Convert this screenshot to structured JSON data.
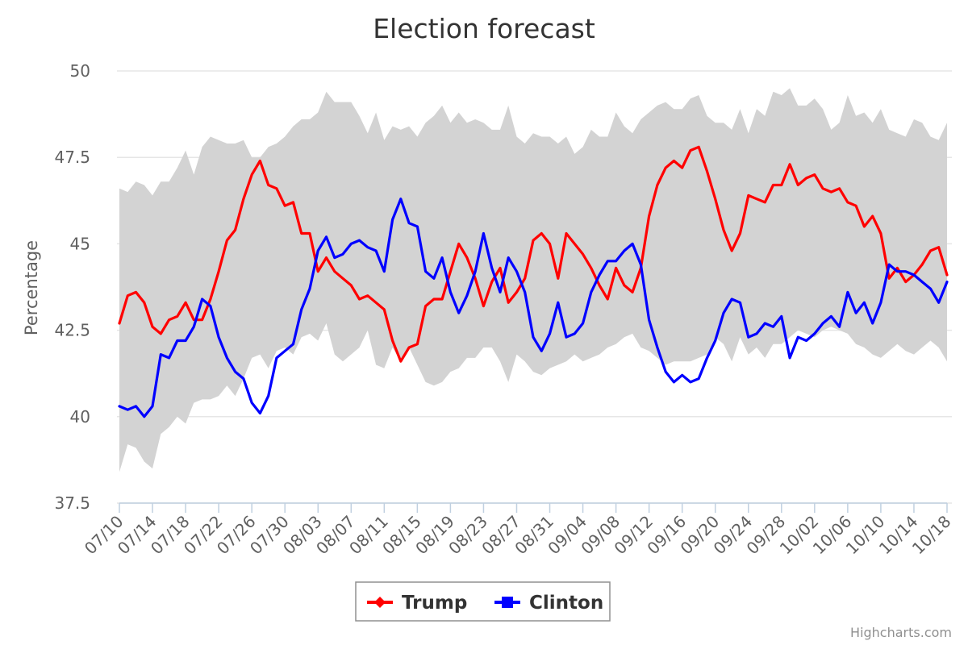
{
  "chart_data": {
    "type": "line",
    "title": "Election forecast",
    "xlabel": "",
    "ylabel": "Percentage",
    "ylim": [
      37.5,
      50
    ],
    "yticks": [
      "37.5",
      "40",
      "42.5",
      "45",
      "47.5",
      "50"
    ],
    "x_tick_labels": [
      "07/10",
      "07/14",
      "07/18",
      "07/22",
      "07/26",
      "07/30",
      "08/03",
      "08/07",
      "08/11",
      "08/15",
      "08/19",
      "08/23",
      "08/27",
      "08/31",
      "09/04",
      "09/08",
      "09/12",
      "09/16",
      "09/20",
      "09/24",
      "09/28",
      "10/02",
      "10/06",
      "10/10",
      "10/14",
      "10/18"
    ],
    "x_start": "07/10",
    "grid": true,
    "legend_position": "bottom-center",
    "credits": "Highcharts.com",
    "series": [
      {
        "name": "Trump",
        "color": "#ff0000",
        "marker": "diamond",
        "values": [
          42.7,
          43.5,
          43.6,
          43.3,
          42.6,
          42.4,
          42.8,
          42.9,
          43.3,
          42.8,
          42.8,
          43.4,
          44.2,
          45.1,
          45.4,
          46.3,
          47.0,
          47.4,
          46.7,
          46.6,
          46.1,
          46.2,
          45.3,
          45.3,
          44.2,
          44.6,
          44.2,
          44.0,
          43.8,
          43.4,
          43.5,
          43.3,
          43.1,
          42.2,
          41.6,
          42.0,
          42.1,
          43.2,
          43.4,
          43.4,
          44.2,
          45.0,
          44.6,
          44.0,
          43.2,
          43.9,
          44.3,
          43.3,
          43.6,
          44.0,
          45.1,
          45.3,
          45.0,
          44.0,
          45.3,
          45.0,
          44.7,
          44.3,
          43.8,
          43.4,
          44.3,
          43.8,
          43.6,
          44.3,
          45.8,
          46.7,
          47.2,
          47.4,
          47.2,
          47.7,
          47.8,
          47.1,
          46.3,
          45.4,
          44.8,
          45.3,
          46.4,
          46.3,
          46.2,
          46.7,
          46.7,
          47.3,
          46.7,
          46.9,
          47.0,
          46.6,
          46.5,
          46.6,
          46.2,
          46.1,
          45.5,
          45.8,
          45.3,
          44.0,
          44.3,
          43.9,
          44.1,
          44.4,
          44.8,
          44.9,
          44.1
        ]
      },
      {
        "name": "Clinton",
        "color": "#0000ff",
        "marker": "square",
        "values": [
          40.3,
          40.2,
          40.3,
          40.0,
          40.3,
          41.8,
          41.7,
          42.2,
          42.2,
          42.6,
          43.4,
          43.2,
          42.3,
          41.7,
          41.3,
          41.1,
          40.4,
          40.1,
          40.6,
          41.7,
          41.9,
          42.1,
          43.1,
          43.7,
          44.8,
          45.2,
          44.6,
          44.7,
          45.0,
          45.1,
          44.9,
          44.8,
          44.2,
          45.7,
          46.3,
          45.6,
          45.5,
          44.2,
          44.0,
          44.6,
          43.6,
          43.0,
          43.5,
          44.2,
          45.3,
          44.3,
          43.6,
          44.6,
          44.2,
          43.6,
          42.3,
          41.9,
          42.4,
          43.3,
          42.3,
          42.4,
          42.7,
          43.6,
          44.1,
          44.5,
          44.5,
          44.8,
          45.0,
          44.4,
          42.8,
          42.0,
          41.3,
          41.0,
          41.2,
          41.0,
          41.1,
          41.7,
          42.2,
          43.0,
          43.4,
          43.3,
          42.3,
          42.4,
          42.7,
          42.6,
          42.9,
          41.7,
          42.3,
          42.2,
          42.4,
          42.7,
          42.9,
          42.6,
          43.6,
          43.0,
          43.3,
          42.7,
          43.3,
          44.4,
          44.2,
          44.2,
          44.1,
          43.9,
          43.7,
          43.3,
          43.9
        ]
      }
    ],
    "band": {
      "color": "#d3d3d3",
      "upper": [
        46.6,
        46.5,
        46.8,
        46.7,
        46.4,
        46.8,
        46.8,
        47.2,
        47.7,
        47.0,
        47.8,
        48.1,
        48.0,
        47.9,
        47.9,
        48.0,
        47.5,
        47.5,
        47.8,
        47.9,
        48.1,
        48.4,
        48.6,
        48.6,
        48.8,
        49.4,
        49.1,
        49.1,
        49.1,
        48.7,
        48.2,
        48.8,
        48.0,
        48.4,
        48.3,
        48.4,
        48.1,
        48.5,
        48.7,
        49.0,
        48.5,
        48.8,
        48.5,
        48.6,
        48.5,
        48.3,
        48.3,
        49.0,
        48.1,
        47.9,
        48.2,
        48.1,
        48.1,
        47.9,
        48.1,
        47.6,
        47.8,
        48.3,
        48.1,
        48.1,
        48.8,
        48.4,
        48.2,
        48.6,
        48.8,
        49.0,
        49.1,
        48.9,
        48.9,
        49.2,
        49.3,
        48.7,
        48.5,
        48.5,
        48.3,
        48.9,
        48.2,
        48.9,
        48.7,
        49.4,
        49.3,
        49.5,
        49.0,
        49.0,
        49.2,
        48.9,
        48.3,
        48.5,
        49.3,
        48.7,
        48.8,
        48.5,
        48.9,
        48.3,
        48.2,
        48.1,
        48.6,
        48.5,
        48.1,
        48.0,
        48.5
      ],
      "lower": [
        38.4,
        39.2,
        39.1,
        38.7,
        38.5,
        39.5,
        39.7,
        40.0,
        39.8,
        40.4,
        40.5,
        40.5,
        40.6,
        40.9,
        40.6,
        41.1,
        41.7,
        41.8,
        41.4,
        41.9,
        42.0,
        41.8,
        42.3,
        42.4,
        42.2,
        42.7,
        41.8,
        41.6,
        41.8,
        42.0,
        42.5,
        41.5,
        41.4,
        42.0,
        41.6,
        42.0,
        41.5,
        41.0,
        40.9,
        41.0,
        41.3,
        41.4,
        41.7,
        41.7,
        42.0,
        42.0,
        41.6,
        41.0,
        41.8,
        41.6,
        41.3,
        41.2,
        41.4,
        41.5,
        41.6,
        41.8,
        41.6,
        41.7,
        41.8,
        42.0,
        42.1,
        42.3,
        42.4,
        42.0,
        41.9,
        41.7,
        41.5,
        41.6,
        41.6,
        41.6,
        41.7,
        41.8,
        42.3,
        42.1,
        41.6,
        42.3,
        41.8,
        42.0,
        41.7,
        42.1,
        42.1,
        42.3,
        42.5,
        42.4,
        42.3,
        42.5,
        42.6,
        42.5,
        42.4,
        42.1,
        42.0,
        41.8,
        41.7,
        41.9,
        42.1,
        41.9,
        41.8,
        42.0,
        42.2,
        42.0,
        41.6
      ]
    }
  }
}
